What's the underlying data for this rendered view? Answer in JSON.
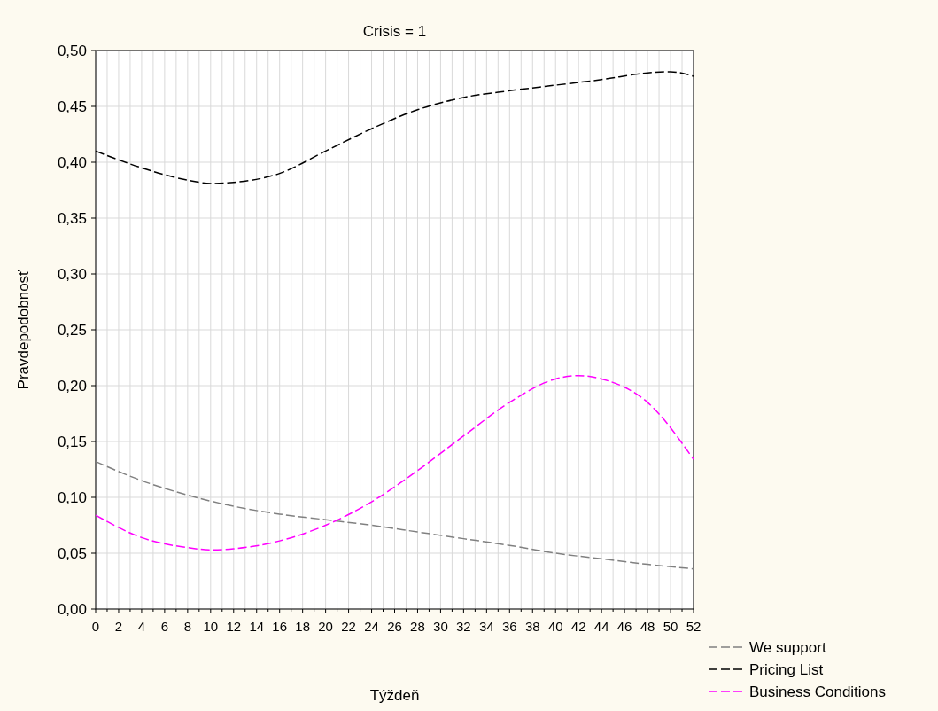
{
  "chart_data": {
    "type": "line",
    "title": "Crisis = 1",
    "xlabel": "Týždeň",
    "ylabel": "Pravdepodobnosť",
    "xlim": [
      0,
      52
    ],
    "xticks": [
      0,
      {
        "value": 1,
        "label": null
      },
      2,
      {
        "value": 3,
        "label": null
      },
      4,
      {
        "value": 5,
        "label": null
      },
      6,
      {
        "value": 7,
        "label": null
      },
      8,
      {
        "value": 9,
        "label": null
      },
      10,
      {
        "value": 11,
        "label": null
      },
      12,
      {
        "value": 13,
        "label": null
      },
      14,
      {
        "value": 15,
        "label": null
      },
      16,
      {
        "value": 17,
        "label": null
      },
      18,
      {
        "value": 19,
        "label": null
      },
      20,
      {
        "value": 21,
        "label": null
      },
      22,
      {
        "value": 23,
        "label": null
      },
      24,
      {
        "value": 25,
        "label": null
      },
      26,
      {
        "value": 27,
        "label": null
      },
      28,
      {
        "value": 29,
        "label": null
      },
      30,
      {
        "value": 31,
        "label": null
      },
      32,
      {
        "value": 33,
        "label": null
      },
      34,
      {
        "value": 35,
        "label": null
      },
      36,
      {
        "value": 37,
        "label": null
      },
      38,
      {
        "value": 39,
        "label": null
      },
      40,
      {
        "value": 41,
        "label": null
      },
      42,
      {
        "value": 43,
        "label": null
      },
      44,
      {
        "value": 45,
        "label": null
      },
      46,
      {
        "value": 47,
        "label": null
      },
      48,
      {
        "value": 49,
        "label": null
      },
      50,
      {
        "value": 51,
        "label": null
      },
      52
    ],
    "ylim": [
      0,
      0.5
    ],
    "yticks": [
      {
        "value": 0,
        "label": "0,00"
      },
      {
        "value": 0.05,
        "label": "0,05"
      },
      {
        "value": 0.1,
        "label": "0,10"
      },
      {
        "value": 0.15,
        "label": "0,15"
      },
      {
        "value": 0.2,
        "label": "0,20"
      },
      {
        "value": 0.25,
        "label": "0,25"
      },
      {
        "value": 0.3,
        "label": "0,30"
      },
      {
        "value": 0.35,
        "label": "0,35"
      },
      {
        "value": 0.4,
        "label": "0,40"
      },
      {
        "value": 0.45,
        "label": "0,45"
      },
      {
        "value": 0.5,
        "label": "0,50"
      }
    ],
    "grid": true,
    "legend": "bottom right",
    "line_style": "dashed",
    "marker": "none",
    "series": [
      {
        "name": "We support",
        "color": "#808080",
        "x": [
          0,
          4,
          8,
          12,
          16,
          20,
          24,
          28,
          32,
          36,
          40,
          44,
          48,
          52
        ],
        "values": [
          0.132,
          0.115,
          0.102,
          0.092,
          0.085,
          0.08,
          0.075,
          0.069,
          0.063,
          0.057,
          0.05,
          0.045,
          0.04,
          0.036
        ]
      },
      {
        "name": "Pricing List",
        "color": "#000000",
        "x": [
          0,
          4,
          8,
          10,
          12,
          16,
          20,
          24,
          28,
          32,
          36,
          40,
          44,
          48,
          50,
          52
        ],
        "values": [
          0.41,
          0.395,
          0.384,
          0.381,
          0.382,
          0.39,
          0.41,
          0.43,
          0.447,
          0.458,
          0.464,
          0.469,
          0.474,
          0.48,
          0.481,
          0.477
        ]
      },
      {
        "name": "Business Conditions",
        "color": "#ff00ff",
        "x": [
          0,
          4,
          8,
          10,
          12,
          16,
          20,
          24,
          28,
          32,
          36,
          40,
          42,
          44,
          48,
          52
        ],
        "values": [
          0.084,
          0.064,
          0.055,
          0.053,
          0.054,
          0.061,
          0.075,
          0.096,
          0.124,
          0.155,
          0.185,
          0.206,
          0.209,
          0.206,
          0.185,
          0.134
        ]
      }
    ]
  }
}
